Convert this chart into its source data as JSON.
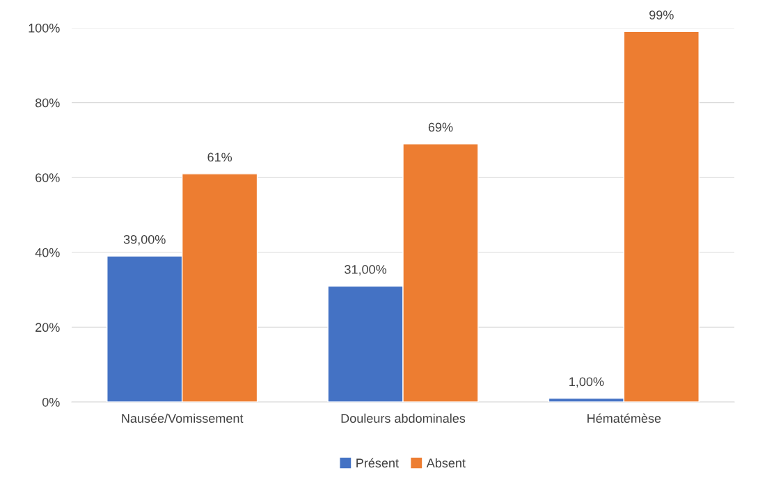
{
  "chart_data": {
    "type": "bar",
    "categories": [
      "Nausée/Vomissement",
      "Douleurs abdominales",
      "Hématémèse"
    ],
    "series": [
      {
        "name": "Présent",
        "color": "#4472c4",
        "values": [
          39,
          31,
          1
        ],
        "value_labels": [
          "39,00%",
          "31,00%",
          "1,00%"
        ]
      },
      {
        "name": "Absent",
        "color": "#ed7d31",
        "values": [
          61,
          69,
          99
        ],
        "value_labels": [
          "61%",
          "69%",
          "99%"
        ]
      }
    ],
    "ylim": [
      0,
      100
    ],
    "yticks": [
      {
        "value": 0,
        "label": "0%"
      },
      {
        "value": 20,
        "label": "20%"
      },
      {
        "value": 40,
        "label": "40%"
      },
      {
        "value": 60,
        "label": "60%"
      },
      {
        "value": 80,
        "label": "80%"
      },
      {
        "value": 100,
        "label": "100%"
      }
    ],
    "grid": "y",
    "legend": "bottom"
  }
}
